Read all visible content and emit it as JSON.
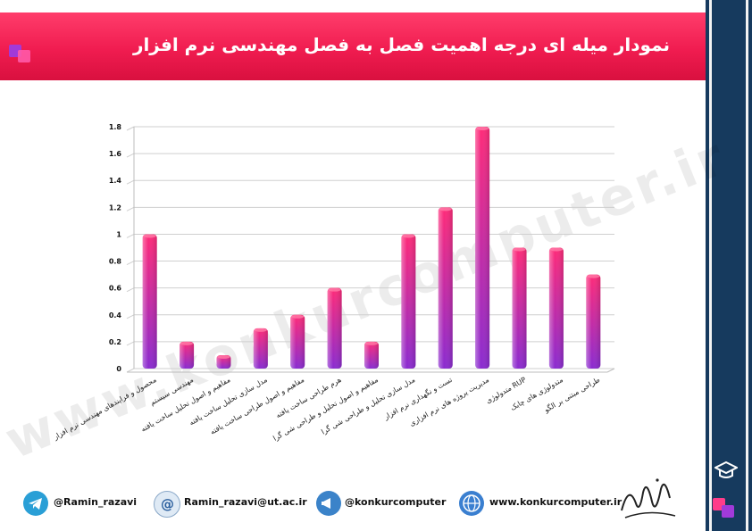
{
  "header": {
    "title": "نمودار میله ای درجه اهمیت فصل به فصل مهندسی نرم افزار"
  },
  "watermark": {
    "text": "www.konkurcomputer.ir"
  },
  "footer": {
    "telegram": "@Ramin_razavi",
    "email": "Ramin_razavi@ut.ac.ir",
    "channel": "@konkurcomputer",
    "website": "www.konkurcomputer.ir"
  },
  "colors": {
    "accent": "#f01c50",
    "band": "#163a5e",
    "bar_top": "#ff2a78",
    "bar_bottom": "#8a2bd0"
  },
  "icons": [
    "telegram-icon",
    "email-icon",
    "channel-icon",
    "globe-icon",
    "mortarboard-icon",
    "signature-logo"
  ],
  "chart_data": {
    "type": "bar",
    "title": "",
    "xlabel": "",
    "ylabel": "",
    "ylim": [
      0,
      1.8
    ],
    "yticks": [
      "0",
      "0.2",
      "0.4",
      "0.6",
      "0.8",
      "1",
      "1.2",
      "1.4",
      "1.6",
      "1.8"
    ],
    "grid": true,
    "legend": false,
    "categories": [
      "محصول و فرایندهای مهندسی نرم افزار",
      "مهندسی سیستم",
      "مفاهیم و اصول تحلیل ساخت یافته",
      "مدل سازی تحلیل ساخت یافته",
      "مفاهیم و اصول طراحی ساخت یافته",
      "هرم طراحی ساخت یافته",
      "مفاهیم و اصول تحلیل و طراحی شی گرا",
      "مدل سازی تحلیل و طراحی شی گرا",
      "تست و نگهداری نرم افزار",
      "مدیریت پروژه های نرم افزاری",
      "متدولوژی RUP",
      "متدولوژی های چابک",
      "طراحی مبتنی بر الگو"
    ],
    "values": [
      1.0,
      0.2,
      0.1,
      0.3,
      0.4,
      0.6,
      0.2,
      1.0,
      1.2,
      1.8,
      0.9,
      0.9,
      0.7
    ]
  }
}
